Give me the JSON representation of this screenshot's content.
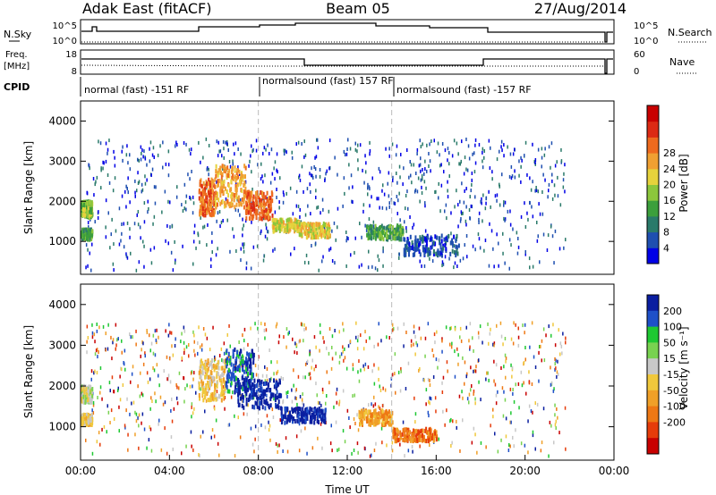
{
  "header": {
    "radar": "Adak East (fitACF)",
    "beam": "Beam 05",
    "date": "27/Aug/2014"
  },
  "top_panels": {
    "nsky_label": "N.Sky",
    "nsky_ticks": [
      "10^5",
      "10^0"
    ],
    "nsearch_label": "N.Search",
    "nsearch_ticks": [
      "10^5",
      "10^0"
    ],
    "freq_label": "Freq.",
    "freq_unit": "[MHz]",
    "freq_ticks": [
      "18",
      "8"
    ],
    "nave_label": "Nave",
    "nave_ticks": [
      "60",
      "0"
    ],
    "cpid_label": "CPID",
    "cpid_segments": [
      {
        "start": 0.0,
        "end": 8.0,
        "label": "normal (fast) -151 RF"
      },
      {
        "start": 8.0,
        "end": 14.0,
        "label": "normalsound (fast) 157 RF"
      },
      {
        "start": 14.0,
        "end": 23.5,
        "label": "normalsound (fast) -157 RF"
      }
    ]
  },
  "chart_data": [
    {
      "type": "heatmap",
      "name": "power",
      "ylabel": "Slant Range [km]",
      "xlabel": "",
      "xlim": [
        0,
        24
      ],
      "ylim": [
        180,
        4500
      ],
      "yticks": [
        "1000",
        "2000",
        "3000",
        "4000"
      ],
      "colorbar_label": "Power [dB]",
      "colorbar_ticks": [
        "4",
        "8",
        "12",
        "16",
        "20",
        "24",
        "28"
      ],
      "colorbar_colors": [
        "#0000e6",
        "#1f4fb0",
        "#2a7a6a",
        "#3c9f3c",
        "#8cc63c",
        "#e6d23c",
        "#f0a032",
        "#ee6a1e",
        "#dc2a14",
        "#c80000"
      ],
      "regions": [
        {
          "x": [
            0.0,
            0.5
          ],
          "y": [
            1650,
            2050
          ],
          "level": 4
        },
        {
          "x": [
            0.0,
            0.5
          ],
          "y": [
            1100,
            1350
          ],
          "level": 3
        },
        {
          "x": [
            5.3,
            6.0
          ],
          "y": [
            1700,
            2600
          ],
          "level": 7
        },
        {
          "x": [
            6.0,
            7.4
          ],
          "y": [
            1900,
            2950
          ],
          "level": 6
        },
        {
          "x": [
            7.4,
            8.6
          ],
          "y": [
            1600,
            2300
          ],
          "level": 7
        },
        {
          "x": [
            8.6,
            9.8
          ],
          "y": [
            1300,
            1600
          ],
          "level": 5
        },
        {
          "x": [
            9.8,
            11.2
          ],
          "y": [
            1150,
            1500
          ],
          "level": 5
        },
        {
          "x": [
            12.8,
            14.5
          ],
          "y": [
            1100,
            1450
          ],
          "level": 3
        },
        {
          "x": [
            14.5,
            17.0
          ],
          "y": [
            700,
            1200
          ],
          "level": 1
        }
      ],
      "scatter_x": [
        0.2,
        21.8
      ],
      "scatter_y": [
        300,
        3600
      ],
      "scatter_level_max": 2
    },
    {
      "type": "heatmap",
      "name": "velocity",
      "ylabel": "Slant Range [km]",
      "xlabel": "Time UT",
      "xlim": [
        0,
        24
      ],
      "ylim": [
        180,
        4500
      ],
      "yticks": [
        "1000",
        "2000",
        "3000",
        "4000"
      ],
      "xticks": [
        "00:00",
        "04:00",
        "08:00",
        "12:00",
        "16:00",
        "20:00",
        "00:00"
      ],
      "colorbar_label": "Velocity [m s⁻¹]",
      "colorbar_ticks": [
        "200",
        "100",
        "50",
        "15",
        "-15",
        "-50",
        "-100",
        "-200"
      ],
      "colorbar_colors": [
        "#0a1ea0",
        "#1e50c8",
        "#1ec832",
        "#78d250",
        "#c8c8c8",
        "#f0c83c",
        "#f0a028",
        "#ee7814",
        "#e63c0a",
        "#c80000"
      ],
      "regions": [
        {
          "x": [
            0.0,
            0.5
          ],
          "y": [
            1650,
            2050
          ],
          "level": 4
        },
        {
          "x": [
            0.0,
            0.5
          ],
          "y": [
            1100,
            1350
          ],
          "level": 5
        },
        {
          "x": [
            5.3,
            6.5
          ],
          "y": [
            1700,
            2700
          ],
          "level": 5
        },
        {
          "x": [
            6.5,
            7.8
          ],
          "y": [
            1900,
            2950
          ],
          "level": 1
        },
        {
          "x": [
            7.0,
            9.0
          ],
          "y": [
            1500,
            2200
          ],
          "level": 0
        },
        {
          "x": [
            9.0,
            11.0
          ],
          "y": [
            1150,
            1500
          ],
          "level": 0
        },
        {
          "x": [
            12.5,
            14.0
          ],
          "y": [
            1100,
            1450
          ],
          "level": 6
        },
        {
          "x": [
            14.0,
            16.0
          ],
          "y": [
            700,
            1000
          ],
          "level": 7
        }
      ],
      "scatter_x": [
        0.2,
        21.8
      ],
      "scatter_y": [
        300,
        3600
      ],
      "scatter_level_max": 9
    }
  ]
}
